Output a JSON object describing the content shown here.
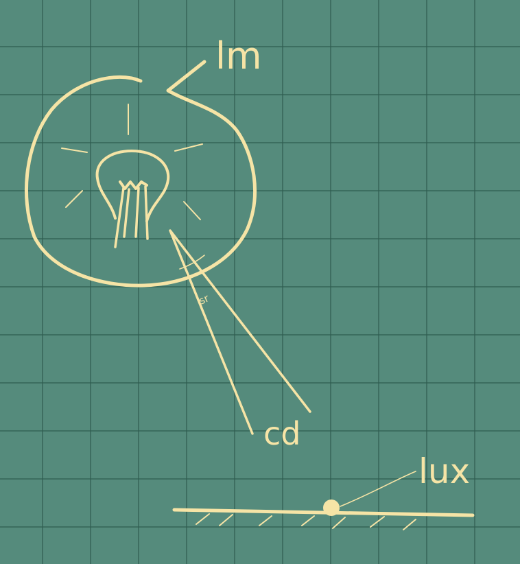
{
  "labels": {
    "lumen": "lm",
    "steradian": "sr",
    "candela": "cd",
    "lux": "lux"
  },
  "colors": {
    "board": "#558b7c",
    "grid": "#2f5c50",
    "chalk": "#f6e4a6"
  },
  "icons": {
    "bulb": "light-bulb-icon",
    "surface": "ground-surface-icon"
  }
}
